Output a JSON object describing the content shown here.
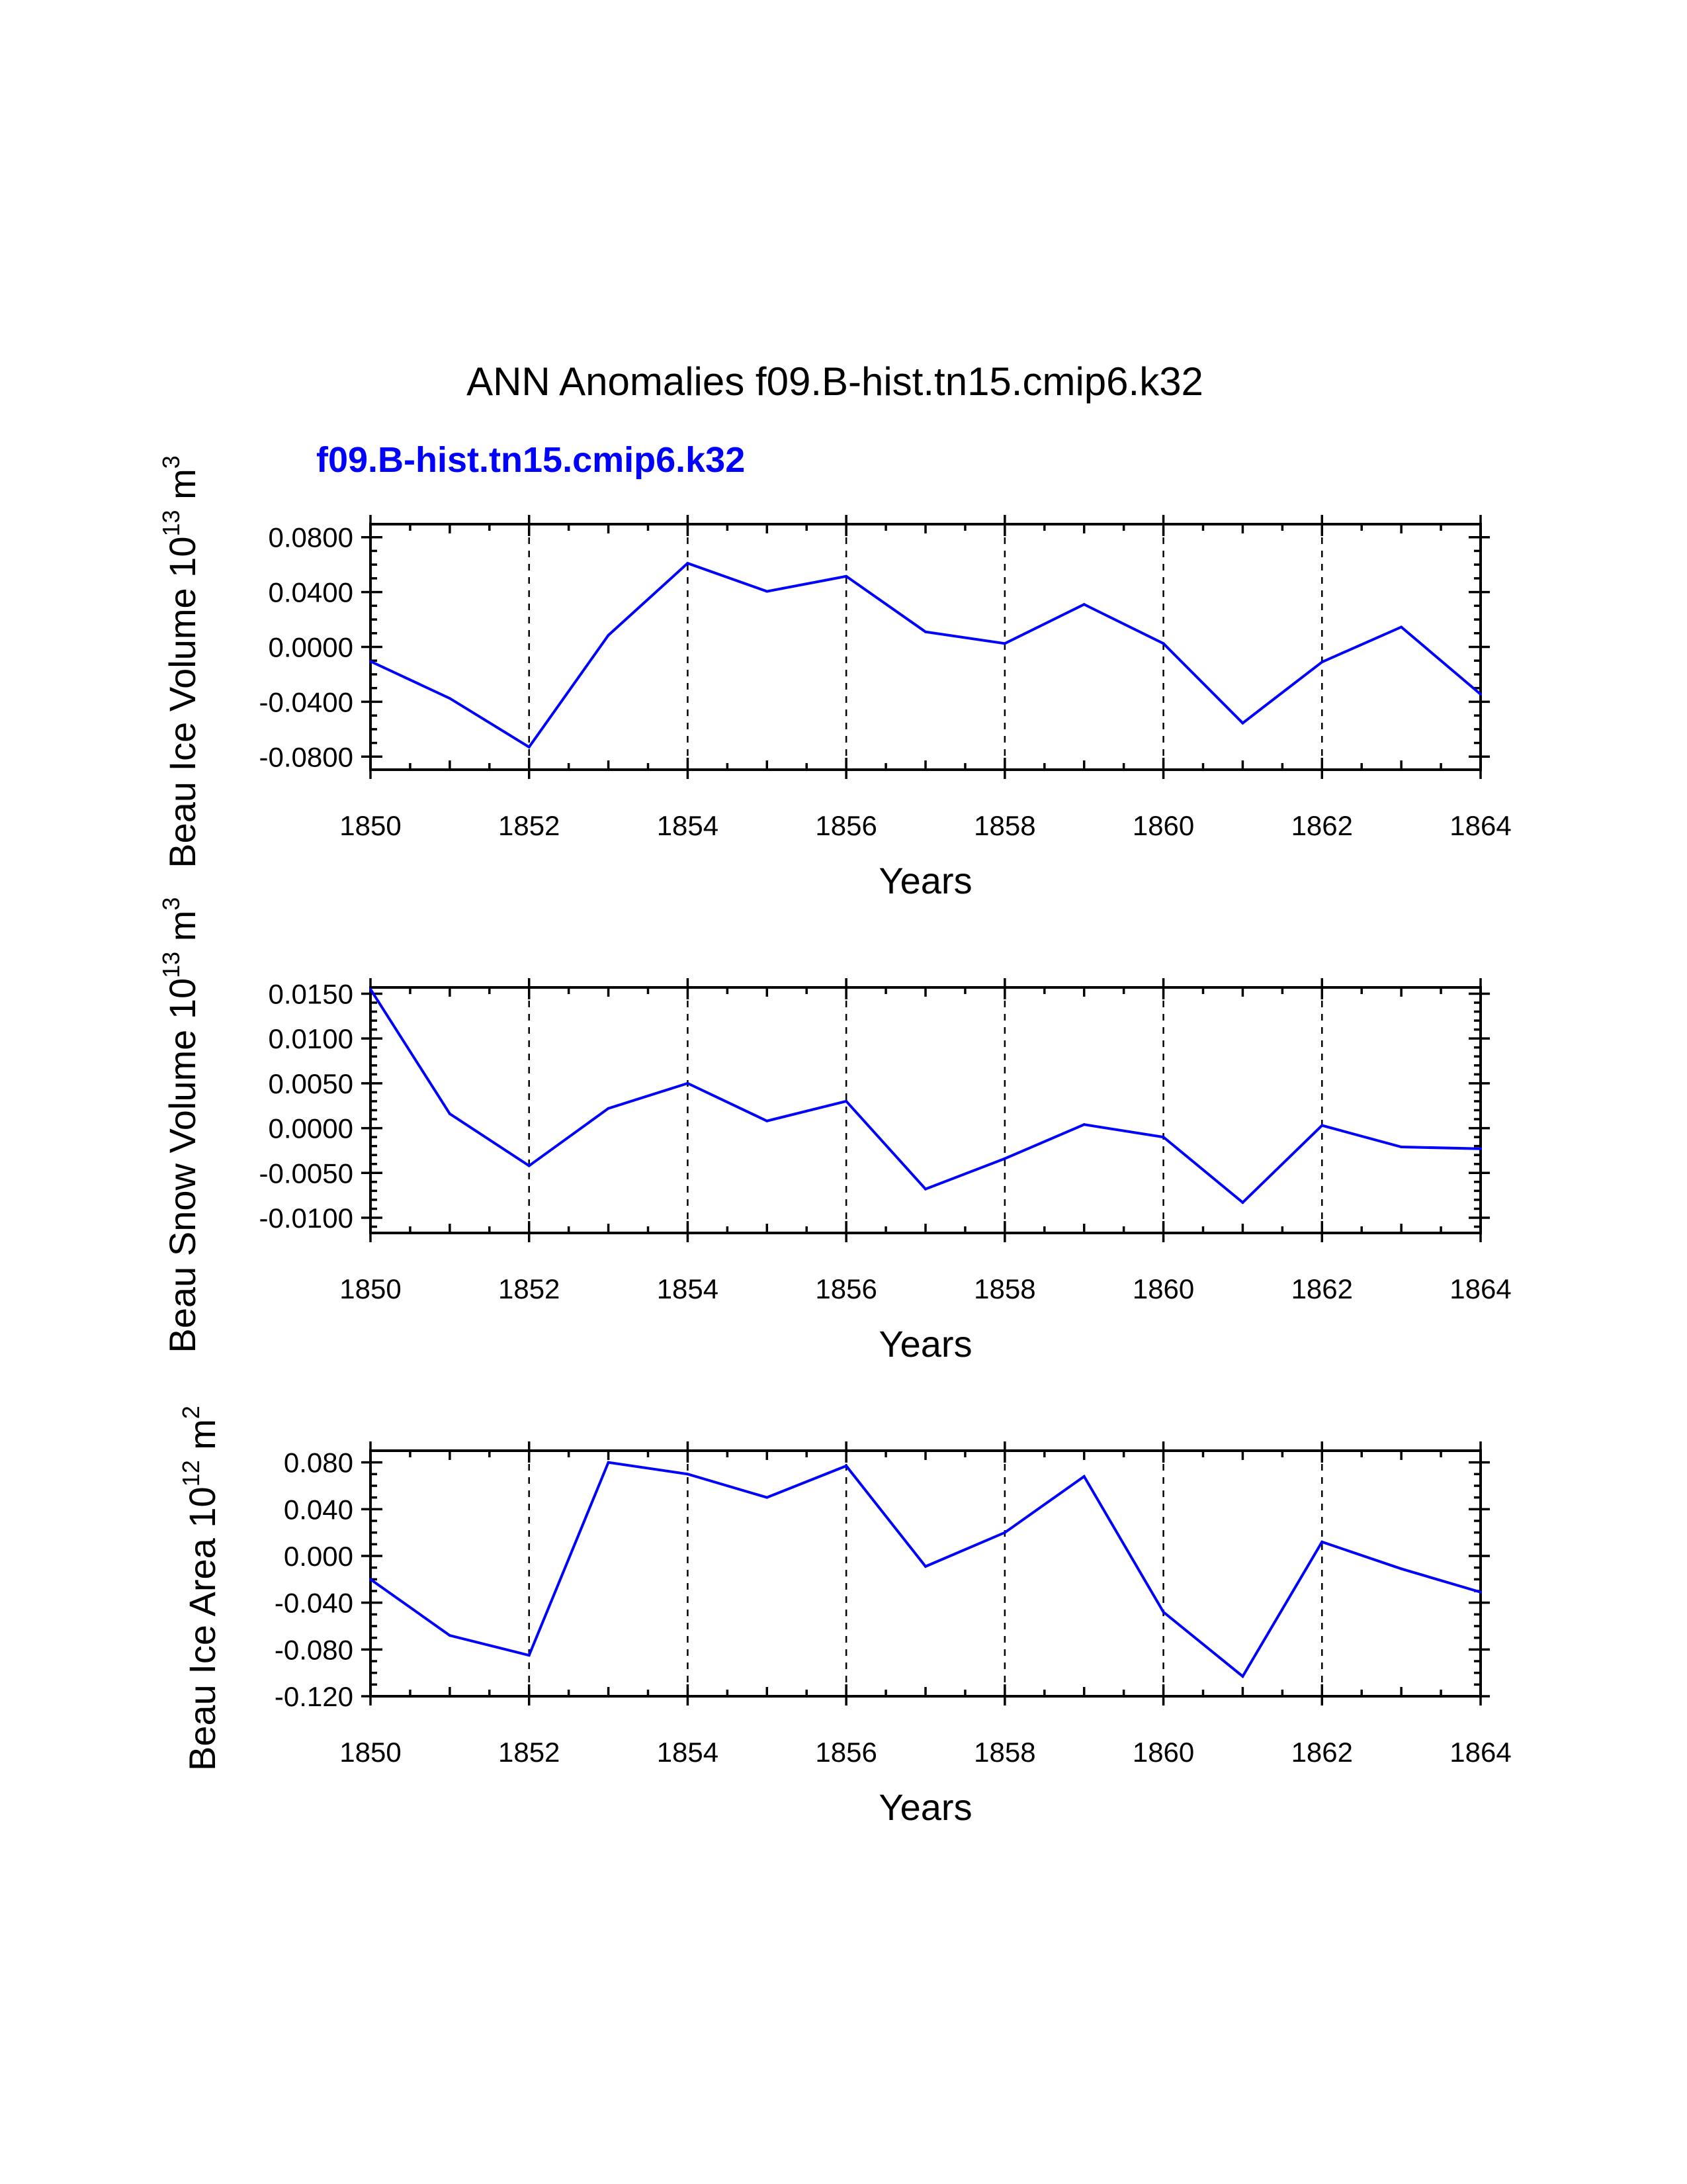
{
  "figure": {
    "title": "ANN Anomalies f09.B-hist.tn15.cmip6.k32",
    "subtitle": "f09.B-hist.tn15.cmip6.k32",
    "subtitle_color": "#0000ff",
    "line_color": "#0000ff"
  },
  "chart_data": [
    {
      "type": "line",
      "xlabel": "Years",
      "ylabel": {
        "main": "Beau Ice Volume 10",
        "sup": "13",
        "unit": " m",
        "unit_sup": "3"
      },
      "x": [
        1850,
        1851,
        1852,
        1853,
        1854,
        1855,
        1856,
        1857,
        1858,
        1859,
        1860,
        1861,
        1862,
        1863,
        1864
      ],
      "series": [
        {
          "name": "f09.B-hist.tn15.cmip6.k32",
          "values": [
            -0.0105,
            -0.0375,
            -0.073,
            0.0085,
            0.061,
            0.0405,
            0.0515,
            0.011,
            0.0025,
            0.031,
            0.0025,
            -0.0555,
            -0.011,
            0.0145,
            -0.0345
          ]
        }
      ],
      "xlim": [
        1850,
        1864
      ],
      "ylim": [
        -0.0895,
        0.0895
      ],
      "xticks": [
        1850,
        1852,
        1854,
        1856,
        1858,
        1860,
        1862,
        1864
      ],
      "xtick_labels": [
        "1850",
        "1852",
        "1854",
        "1856",
        "1858",
        "1860",
        "1862",
        "1864"
      ],
      "yticks": [
        -0.08,
        -0.04,
        0.0,
        0.04,
        0.08
      ],
      "ytick_labels": [
        "-0.0800",
        "-0.0400",
        "0.0000",
        "0.0400",
        "0.0800"
      ],
      "yminor_step": 0.01,
      "grid": "vertical dashed at major x ticks"
    },
    {
      "type": "line",
      "xlabel": "Years",
      "ylabel": {
        "main": "Beau Snow Volume 10",
        "sup": "13",
        "unit": " m",
        "unit_sup": "3"
      },
      "x": [
        1850,
        1851,
        1852,
        1853,
        1854,
        1855,
        1856,
        1857,
        1858,
        1859,
        1860,
        1861,
        1862,
        1863,
        1864
      ],
      "series": [
        {
          "name": "f09.B-hist.tn15.cmip6.k32",
          "values": [
            0.0155,
            0.0016,
            -0.0042,
            0.0022,
            0.005,
            0.0008,
            0.003,
            -0.0068,
            -0.0034,
            0.0004,
            -0.001,
            -0.0083,
            0.0003,
            -0.0021,
            -0.0023
          ]
        }
      ],
      "xlim": [
        1850,
        1864
      ],
      "ylim": [
        -0.0117,
        0.0157
      ],
      "xticks": [
        1850,
        1852,
        1854,
        1856,
        1858,
        1860,
        1862,
        1864
      ],
      "xtick_labels": [
        "1850",
        "1852",
        "1854",
        "1856",
        "1858",
        "1860",
        "1862",
        "1864"
      ],
      "yticks": [
        -0.01,
        -0.005,
        0.0,
        0.005,
        0.01,
        0.015
      ],
      "ytick_labels": [
        "-0.0100",
        "-0.0050",
        "0.0000",
        "0.0050",
        "0.0100",
        "0.0150"
      ],
      "yminor_step": 0.001,
      "grid": "vertical dashed at major x ticks"
    },
    {
      "type": "line",
      "xlabel": "Years",
      "ylabel": {
        "main": "Beau Ice Area 10",
        "sup": "12",
        "unit": " m",
        "unit_sup": "2"
      },
      "x": [
        1850,
        1851,
        1852,
        1853,
        1854,
        1855,
        1856,
        1857,
        1858,
        1859,
        1860,
        1861,
        1862,
        1863,
        1864
      ],
      "series": [
        {
          "name": "f09.B-hist.tn15.cmip6.k32",
          "values": [
            -0.02,
            -0.068,
            -0.085,
            0.08,
            0.07,
            0.05,
            0.077,
            -0.009,
            0.02,
            0.068,
            -0.048,
            -0.103,
            0.012,
            -0.011,
            -0.031
          ]
        }
      ],
      "xlim": [
        1850,
        1864
      ],
      "ylim": [
        -0.12,
        0.09
      ],
      "xticks": [
        1850,
        1852,
        1854,
        1856,
        1858,
        1860,
        1862,
        1864
      ],
      "xtick_labels": [
        "1850",
        "1852",
        "1854",
        "1856",
        "1858",
        "1860",
        "1862",
        "1864"
      ],
      "yticks": [
        -0.12,
        -0.08,
        -0.04,
        0.0,
        0.04,
        0.08
      ],
      "ytick_labels": [
        "-0.120",
        "-0.080",
        "-0.040",
        "0.000",
        "0.040",
        "0.080"
      ],
      "yminor_step": 0.01,
      "grid": "vertical dashed at major x ticks"
    }
  ]
}
